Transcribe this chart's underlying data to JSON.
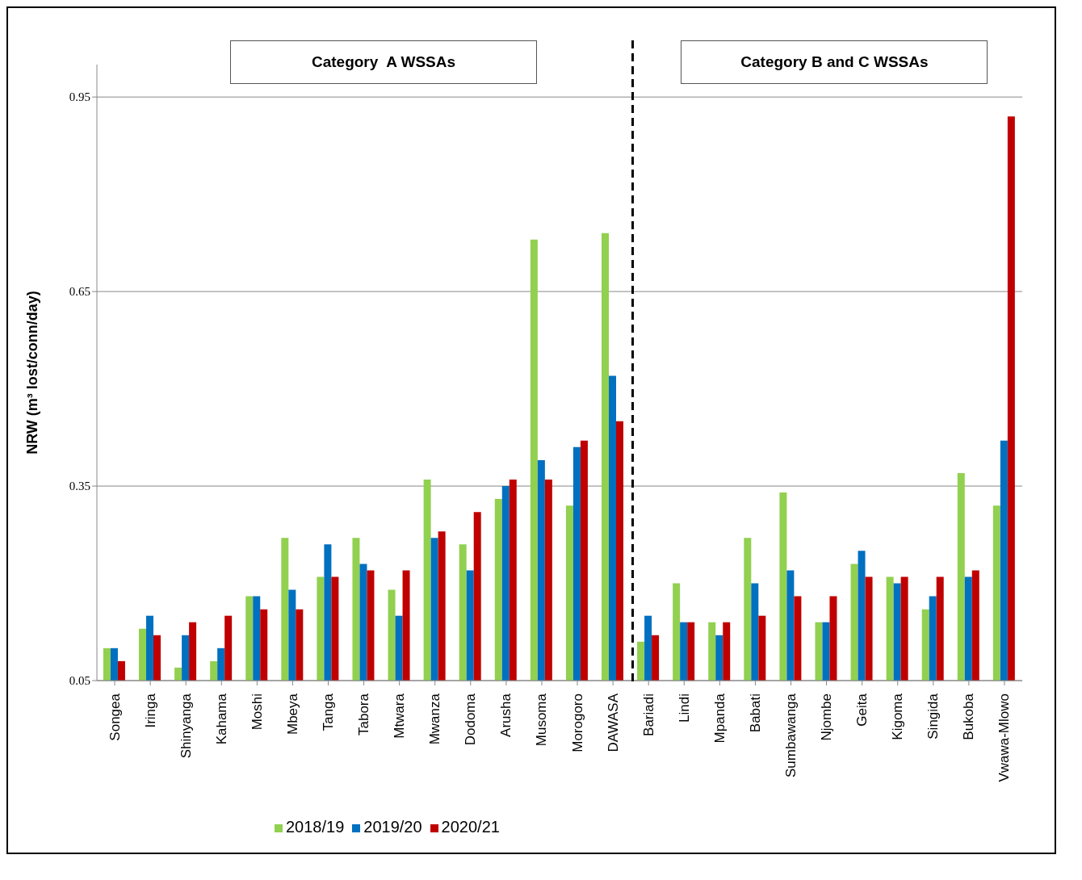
{
  "chart_data": {
    "type": "bar",
    "ylabel": "NRW (m³ lost/conn/day)",
    "categories": [
      "Songea",
      "Iringa",
      "Shinyanga",
      "Kahama",
      "Moshi",
      "Mbeya",
      "Tanga",
      "Tabora",
      "Mtwara",
      "Mwanza",
      "Dodoma",
      "Arusha",
      "Musoma",
      "Morogoro",
      "DAWASA",
      "Bariadi",
      "Lindi",
      "Mpanda",
      "Babati",
      "Sumbawanga",
      "Njombe",
      "Geita",
      "Kigoma",
      "Singida",
      "Bukoba",
      "Vwawa-Mlowo"
    ],
    "series": [
      {
        "name": "2018/19",
        "color": "#92d050",
        "values": [
          0.1,
          0.13,
          0.07,
          0.08,
          0.18,
          0.27,
          0.21,
          0.27,
          0.19,
          0.36,
          0.26,
          0.33,
          0.73,
          0.32,
          0.74,
          0.11,
          0.2,
          0.14,
          0.27,
          0.34,
          0.14,
          0.23,
          0.21,
          0.16,
          0.37,
          0.32
        ]
      },
      {
        "name": "2019/20",
        "color": "#0070c0",
        "values": [
          0.1,
          0.15,
          0.12,
          0.1,
          0.18,
          0.19,
          0.26,
          0.23,
          0.15,
          0.27,
          0.22,
          0.35,
          0.39,
          0.41,
          0.52,
          0.15,
          0.14,
          0.12,
          0.2,
          0.22,
          0.14,
          0.25,
          0.2,
          0.18,
          0.21,
          0.42
        ]
      },
      {
        "name": "2020/21",
        "color": "#c00000",
        "values": [
          0.08,
          0.12,
          0.14,
          0.15,
          0.16,
          0.16,
          0.21,
          0.22,
          0.22,
          0.28,
          0.31,
          0.36,
          0.36,
          0.42,
          0.45,
          0.12,
          0.14,
          0.14,
          0.15,
          0.18,
          0.18,
          0.21,
          0.21,
          0.21,
          0.22,
          0.92
        ]
      }
    ],
    "ylim": [
      0.05,
      1.0
    ],
    "yticks": [
      0.05,
      0.35,
      0.65,
      0.95
    ],
    "grid": "y",
    "legend": "bottom",
    "annotations": [
      "Category  A WSSAs",
      "Category B and C WSSAs"
    ]
  }
}
